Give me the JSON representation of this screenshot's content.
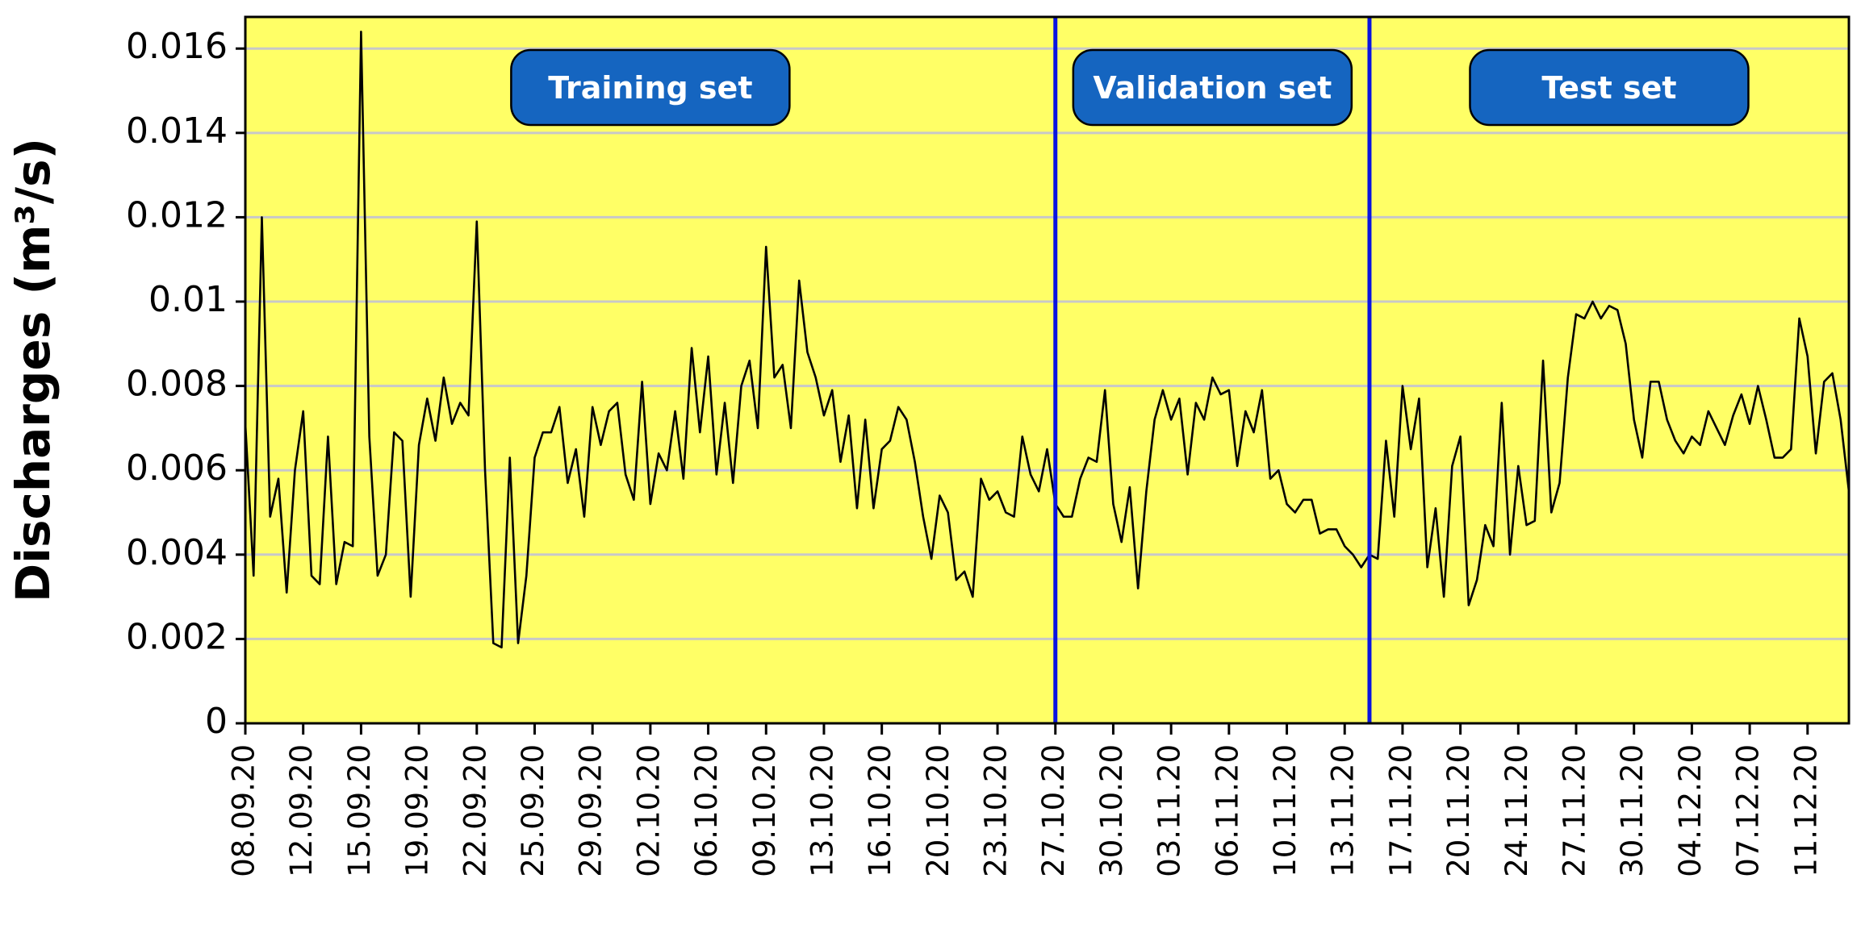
{
  "chart_data": {
    "type": "line",
    "ylabel": "Discharges (m³/s)",
    "color": "#000000",
    "background": "#ffff66",
    "grid": true,
    "ylim": [
      0,
      0.01675
    ],
    "yticks": [
      0,
      0.002,
      0.004,
      0.006,
      0.008,
      0.01,
      0.012,
      0.014,
      0.016
    ],
    "split_indices": [
      98,
      136
    ],
    "split_color": "#0a14e0",
    "annotations": [
      {
        "text": "Training set"
      },
      {
        "text": "Validation set"
      },
      {
        "text": "Test set"
      }
    ],
    "annotation_color": "#1565c0",
    "categories": [
      "08.09.20",
      null,
      null,
      null,
      null,
      null,
      null,
      "12.09.20",
      null,
      null,
      null,
      null,
      null,
      null,
      "15.09.20",
      null,
      null,
      null,
      null,
      null,
      null,
      "19.09.20",
      null,
      null,
      null,
      null,
      null,
      null,
      "22.09.20",
      null,
      null,
      null,
      null,
      null,
      null,
      "25.09.20",
      null,
      null,
      null,
      null,
      null,
      null,
      "29.09.20",
      null,
      null,
      null,
      null,
      null,
      null,
      "02.10.20",
      null,
      null,
      null,
      null,
      null,
      null,
      "06.10.20",
      null,
      null,
      null,
      null,
      null,
      null,
      "09.10.20",
      null,
      null,
      null,
      null,
      null,
      null,
      "13.10.20",
      null,
      null,
      null,
      null,
      null,
      null,
      "16.10.20",
      null,
      null,
      null,
      null,
      null,
      null,
      "20.10.20",
      null,
      null,
      null,
      null,
      null,
      null,
      "23.10.20",
      null,
      null,
      null,
      null,
      null,
      null,
      "27.10.20",
      null,
      null,
      null,
      null,
      null,
      null,
      "30.10.20",
      null,
      null,
      null,
      null,
      null,
      null,
      "03.11.20",
      null,
      null,
      null,
      null,
      null,
      null,
      "06.11.20",
      null,
      null,
      null,
      null,
      null,
      null,
      "10.11.20",
      null,
      null,
      null,
      null,
      null,
      null,
      "13.11.20",
      null,
      null,
      null,
      null,
      null,
      null,
      "17.11.20",
      null,
      null,
      null,
      null,
      null,
      null,
      "20.11.20",
      null,
      null,
      null,
      null,
      null,
      null,
      "24.11.20",
      null,
      null,
      null,
      null,
      null,
      null,
      "27.11.20",
      null,
      null,
      null,
      null,
      null,
      null,
      "30.11.20",
      null,
      null,
      null,
      null,
      null,
      null,
      "04.12.20",
      null,
      null,
      null,
      null,
      null,
      null,
      "07.12.20",
      null,
      null,
      null,
      null,
      null,
      null,
      "11.12.20",
      null,
      null,
      null,
      null,
      null
    ],
    "values": [
      0.0071,
      0.0035,
      0.012,
      0.0049,
      0.0058,
      0.0031,
      0.006,
      0.0074,
      0.0035,
      0.0033,
      0.0068,
      0.0033,
      0.0043,
      0.0042,
      0.0164,
      0.0068,
      0.0035,
      0.004,
      0.0069,
      0.0067,
      0.003,
      0.0066,
      0.0077,
      0.0067,
      0.0082,
      0.0071,
      0.0076,
      0.0073,
      0.0119,
      0.006,
      0.0019,
      0.0018,
      0.0063,
      0.0019,
      0.0035,
      0.0063,
      0.0069,
      0.0069,
      0.0075,
      0.0057,
      0.0065,
      0.0049,
      0.0075,
      0.0066,
      0.0074,
      0.0076,
      0.0059,
      0.0053,
      0.0081,
      0.0052,
      0.0064,
      0.006,
      0.0074,
      0.0058,
      0.0089,
      0.0069,
      0.0087,
      0.0059,
      0.0076,
      0.0057,
      0.008,
      0.0086,
      0.007,
      0.0113,
      0.0082,
      0.0085,
      0.007,
      0.0105,
      0.0088,
      0.0082,
      0.0073,
      0.0079,
      0.0062,
      0.0073,
      0.0051,
      0.0072,
      0.0051,
      0.0065,
      0.0067,
      0.0075,
      0.0072,
      0.0062,
      0.0049,
      0.0039,
      0.0054,
      0.005,
      0.0034,
      0.0036,
      0.003,
      0.0058,
      0.0053,
      0.0055,
      0.005,
      0.0049,
      0.0068,
      0.0059,
      0.0055,
      0.0065,
      0.0052,
      0.0049,
      0.0049,
      0.0058,
      0.0063,
      0.0062,
      0.0079,
      0.0052,
      0.0043,
      0.0056,
      0.0032,
      0.0055,
      0.0072,
      0.0079,
      0.0072,
      0.0077,
      0.0059,
      0.0076,
      0.0072,
      0.0082,
      0.0078,
      0.0079,
      0.0061,
      0.0074,
      0.0069,
      0.0079,
      0.0058,
      0.006,
      0.0052,
      0.005,
      0.0053,
      0.0053,
      0.0045,
      0.0046,
      0.0046,
      0.0042,
      0.004,
      0.0037,
      0.004,
      0.0039,
      0.0067,
      0.0049,
      0.008,
      0.0065,
      0.0077,
      0.0037,
      0.0051,
      0.003,
      0.0061,
      0.0068,
      0.0028,
      0.0034,
      0.0047,
      0.0042,
      0.0076,
      0.004,
      0.0061,
      0.0047,
      0.0048,
      0.0086,
      0.005,
      0.0057,
      0.0082,
      0.0097,
      0.0096,
      0.01,
      0.0096,
      0.0099,
      0.0098,
      0.009,
      0.0072,
      0.0063,
      0.0081,
      0.0081,
      0.0072,
      0.0067,
      0.0064,
      0.0068,
      0.0066,
      0.0074,
      0.007,
      0.0066,
      0.0073,
      0.0078,
      0.0071,
      0.008,
      0.0072,
      0.0063,
      0.0063,
      0.0065,
      0.0096,
      0.0087,
      0.0064,
      0.0081,
      0.0083,
      0.0072,
      0.0055
    ]
  }
}
